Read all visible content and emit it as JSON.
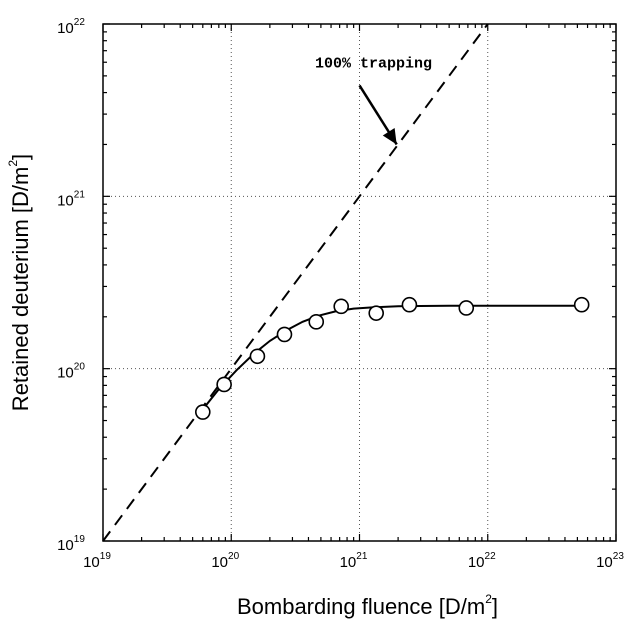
{
  "chart_data": {
    "type": "scatter",
    "xscale": "log",
    "yscale": "log",
    "xlim": [
      1e+19,
      1e+23
    ],
    "ylim": [
      1e+19,
      1e+22
    ],
    "grid": true,
    "xlabel": "Bombarding fluence [D/m",
    "xlabel_sup": "2",
    "xlabel_end": "]",
    "ylabel": "Retained deuterium [D/m",
    "ylabel_sup": "2",
    "ylabel_end": "]",
    "x_ticks": [
      {
        "value": 1e+19,
        "base": "10",
        "exp": "19"
      },
      {
        "value": 1e+20,
        "base": "10",
        "exp": "20"
      },
      {
        "value": 1e+21,
        "base": "10",
        "exp": "21"
      },
      {
        "value": 1e+22,
        "base": "10",
        "exp": "22"
      },
      {
        "value": 1e+23,
        "base": "10",
        "exp": "23"
      }
    ],
    "y_ticks": [
      {
        "value": 1e+19,
        "base": "10",
        "exp": "19"
      },
      {
        "value": 1e+20,
        "base": "10",
        "exp": "20"
      },
      {
        "value": 1e+21,
        "base": "10",
        "exp": "21"
      },
      {
        "value": 1e+22,
        "base": "10",
        "exp": "22"
      }
    ],
    "series": [
      {
        "style": "open-circle markers",
        "x": [
          6e+19,
          8.8e+19,
          1.6e+20,
          2.6e+20,
          4.6e+20,
          7.2e+20,
          1.35e+21,
          2.45e+21,
          6.8e+21,
          5.4e+22
        ],
        "y": [
          5.6e+19,
          8.1e+19,
          1.18e+20,
          1.58e+20,
          1.87e+20,
          2.3e+20,
          2.1e+20,
          2.35e+20,
          2.25e+20,
          2.35e+20
        ]
      },
      {
        "style": "solid line",
        "x": [
          6e+19,
          8e+19,
          1.1e+20,
          1.5e+20,
          2e+20,
          2.7e+20,
          3.6e+20,
          4.8e+20,
          6.5e+20,
          9e+20,
          1.3e+21,
          2e+21,
          3e+21,
          5e+21,
          1e+22,
          5.4e+22
        ],
        "y": [
          5.8e+19,
          7.6e+19,
          9.8e+19,
          1.22e+20,
          1.45e+20,
          1.67e+20,
          1.87e+20,
          2.03e+20,
          2.15e+20,
          2.23e+20,
          2.27e+20,
          2.3e+20,
          2.31e+20,
          2.32e+20,
          2.32e+20,
          2.32e+20
        ]
      },
      {
        "style": "dashed line",
        "x": [
          1e+19,
          1e+22
        ],
        "y": [
          1e+19,
          1e+22
        ]
      }
    ],
    "annotations": [
      {
        "text": "100% trapping",
        "text_x": 4.5e+20,
        "text_y": 5.6e+21,
        "arrow_from_x": 1e+21,
        "arrow_from_y": 4.4e+21,
        "arrow_to_x": 1.95e+21,
        "arrow_to_y": 2e+21
      }
    ]
  }
}
